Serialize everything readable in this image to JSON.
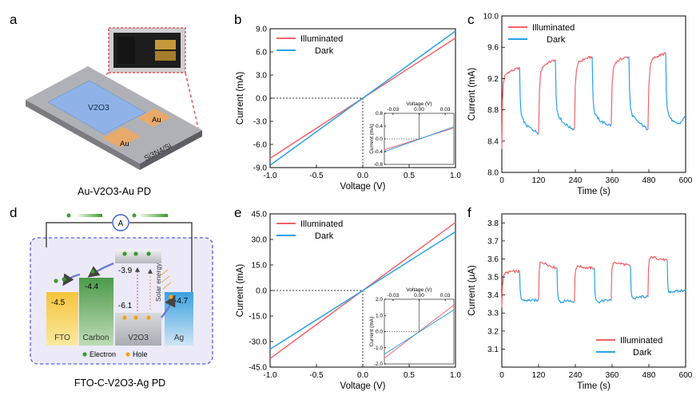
{
  "panel_labels": [
    "a",
    "b",
    "c",
    "d",
    "e",
    "f"
  ],
  "colors": {
    "illuminated": "#f0646a",
    "dark": "#2aa2e6",
    "gold": "#e8a96a",
    "v2o3": "#8fb3e8"
  },
  "device_a": {
    "caption": "Au-V2O3-Au PD",
    "labels": {
      "v2o3": "V2O3",
      "au_left": "Au",
      "au_right": "Au",
      "substrate": "Si3N4/Si"
    }
  },
  "diagram_d": {
    "caption": "FTO-C-V2O3-Ag PD",
    "meter": "A",
    "layers": [
      {
        "name": "FTO",
        "level": "-4.5"
      },
      {
        "name": "Carbon",
        "level": "-4.4"
      },
      {
        "name": "V2O3",
        "level": "-6.1",
        "cb_level": "-3.9"
      },
      {
        "name": "Ag",
        "level": "-4.7"
      }
    ],
    "solar_label": "Solar energy",
    "legend": {
      "electron": "Electron",
      "hole": "Hole"
    }
  },
  "chart_data": [
    {
      "panel": "b",
      "type": "line",
      "xlabel": "Voltage (V)",
      "ylabel": "Current (mA)",
      "xlim": [
        -1.0,
        1.0
      ],
      "ylim": [
        -9.0,
        9.0
      ],
      "xticks": [
        "-1.0",
        "-0.5",
        "0.0",
        "0.5",
        "1.0"
      ],
      "yticks": [
        "-9.0",
        "-6.0",
        "-3.0",
        "0.0",
        "3.0",
        "6.0",
        "9.0"
      ],
      "legend_position": "top-left",
      "series": [
        {
          "name": "Illuminated",
          "x": [
            -1.0,
            1.0
          ],
          "y": [
            -7.8,
            7.8
          ]
        },
        {
          "name": "Dark",
          "x": [
            -1.0,
            1.0
          ],
          "y": [
            -8.7,
            8.7
          ]
        }
      ],
      "inset": {
        "xlabel": "Voltage (V)",
        "ylabel": "Current (mA)",
        "xlim": [
          -0.04,
          0.04
        ],
        "ylim": [
          -0.8,
          0.8
        ],
        "xticks": [
          "-0.03",
          "0.00",
          "0.03"
        ],
        "yticks": [
          "0.8",
          "0.4",
          "0.0",
          "-0.4",
          "-0.8"
        ],
        "series": [
          {
            "name": "Illuminated",
            "x": [
              -0.04,
              0.04
            ],
            "y": [
              -0.34,
              0.34
            ]
          },
          {
            "name": "Dark",
            "x": [
              -0.04,
              0.04
            ],
            "y": [
              -0.4,
              0.38
            ]
          }
        ]
      }
    },
    {
      "panel": "c",
      "type": "line",
      "xlabel": "Time (s)",
      "ylabel": "Current (mA)",
      "xlim": [
        0,
        600
      ],
      "ylim": [
        8.0,
        10.0
      ],
      "xticks": [
        "0",
        "120",
        "240",
        "360",
        "480",
        "600"
      ],
      "yticks": [
        "8.0",
        "8.4",
        "8.8",
        "9.2",
        "9.6",
        "10.0"
      ],
      "legend_position": "top-left",
      "series": [
        {
          "name": "Illuminated",
          "segments": [
            {
              "x": [
                0,
                2,
                5,
                10,
                20,
                40,
                58
              ],
              "y": [
                8.3,
                8.9,
                9.15,
                9.23,
                9.28,
                9.31,
                9.34
              ]
            },
            {
              "x": [
                120,
                123,
                127,
                135,
                150,
                175
              ],
              "y": [
                8.5,
                9.05,
                9.28,
                9.36,
                9.4,
                9.44
              ]
            },
            {
              "x": [
                237,
                240,
                244,
                252,
                270,
                295
              ],
              "y": [
                8.55,
                9.1,
                9.33,
                9.41,
                9.45,
                9.48
              ]
            },
            {
              "x": [
                357,
                360,
                364,
                372,
                390,
                415
              ],
              "y": [
                8.6,
                9.1,
                9.33,
                9.41,
                9.45,
                9.48
              ]
            },
            {
              "x": [
                477,
                480,
                484,
                492,
                510,
                535
              ],
              "y": [
                8.55,
                9.1,
                9.35,
                9.45,
                9.49,
                9.52
              ]
            }
          ]
        },
        {
          "name": "Dark",
          "segments": [
            {
              "x": [
                58,
                60,
                63,
                68,
                80,
                100,
                120
              ],
              "y": [
                9.34,
                8.95,
                8.75,
                8.68,
                8.6,
                8.55,
                8.5
              ]
            },
            {
              "x": [
                175,
                177,
                180,
                186,
                200,
                220,
                237
              ],
              "y": [
                9.44,
                9.0,
                8.8,
                8.72,
                8.64,
                8.58,
                8.55
              ]
            },
            {
              "x": [
                295,
                297,
                300,
                306,
                320,
                340,
                357
              ],
              "y": [
                9.48,
                9.05,
                8.82,
                8.73,
                8.66,
                8.62,
                8.6
              ]
            },
            {
              "x": [
                415,
                417,
                420,
                426,
                440,
                460,
                477
              ],
              "y": [
                9.48,
                9.05,
                8.82,
                8.73,
                8.66,
                8.6,
                8.55
              ]
            },
            {
              "x": [
                535,
                537,
                540,
                546,
                560,
                580,
                600
              ],
              "y": [
                9.52,
                9.05,
                8.82,
                8.72,
                8.64,
                8.62,
                8.72
              ]
            }
          ]
        }
      ]
    },
    {
      "panel": "e",
      "type": "line",
      "xlabel": "Voltage (V)",
      "ylabel": "Current (mA)",
      "xlim": [
        -1.0,
        1.0
      ],
      "ylim": [
        -45.0,
        45.0
      ],
      "xticks": [
        "-1.0",
        "-0.5",
        "0.0",
        "0.5",
        "1.0"
      ],
      "yticks": [
        "-45.0",
        "-30.0",
        "-15.0",
        "0.0",
        "15.0",
        "30.0",
        "45.0"
      ],
      "legend_position": "top-left",
      "series": [
        {
          "name": "Illuminated",
          "x": [
            -1.0,
            1.0
          ],
          "y": [
            -40.0,
            40.0
          ]
        },
        {
          "name": "Dark",
          "x": [
            -1.0,
            1.0
          ],
          "y": [
            -34.5,
            34.5
          ]
        }
      ],
      "inset": {
        "xlabel": "Voltage (V)",
        "ylabel": "Current (mA)",
        "xlim": [
          -0.04,
          0.04
        ],
        "ylim": [
          -2.0,
          2.0
        ],
        "xticks": [
          "-0.03",
          "0.00",
          "0.03"
        ],
        "yticks": [
          "2.0",
          "1.0",
          "0.0",
          "-1.0",
          "-2.0"
        ],
        "series": [
          {
            "name": "Illuminated",
            "x": [
              -0.04,
              0.04
            ],
            "y": [
              -1.65,
              1.65
            ]
          },
          {
            "name": "Dark",
            "x": [
              -0.04,
              0.04
            ],
            "y": [
              -1.4,
              1.35
            ]
          }
        ]
      }
    },
    {
      "panel": "f",
      "type": "line",
      "xlabel": "Time (s)",
      "ylabel": "Current (μA)",
      "xlim": [
        0,
        600
      ],
      "ylim": [
        3.0,
        3.85
      ],
      "xticks": [
        "0",
        "120",
        "240",
        "360",
        "480",
        "600"
      ],
      "yticks": [
        "3.1",
        "3.2",
        "3.3",
        "3.4",
        "3.5",
        "3.6",
        "3.7",
        "3.8"
      ],
      "legend_position": "bottom-right",
      "series": [
        {
          "name": "Illuminated",
          "segments": [
            {
              "x": [
                0,
                2,
                5,
                10,
                30,
                58
              ],
              "y": [
                3.33,
                3.45,
                3.5,
                3.52,
                3.53,
                3.53
              ]
            },
            {
              "x": [
                120,
                122,
                125,
                135,
                160,
                180
              ],
              "y": [
                3.37,
                3.53,
                3.58,
                3.58,
                3.56,
                3.55
              ]
            },
            {
              "x": [
                237,
                239,
                242,
                250,
                280,
                302
              ],
              "y": [
                3.36,
                3.51,
                3.55,
                3.56,
                3.55,
                3.55
              ]
            },
            {
              "x": [
                357,
                359,
                362,
                370,
                400,
                420
              ],
              "y": [
                3.37,
                3.53,
                3.57,
                3.58,
                3.57,
                3.56
              ]
            },
            {
              "x": [
                477,
                479,
                482,
                490,
                520,
                540
              ],
              "y": [
                3.39,
                3.55,
                3.6,
                3.61,
                3.6,
                3.59
              ]
            }
          ]
        },
        {
          "name": "Dark",
          "segments": [
            {
              "x": [
                58,
                60,
                63,
                70,
                90,
                120
              ],
              "y": [
                3.53,
                3.42,
                3.38,
                3.37,
                3.37,
                3.37
              ]
            },
            {
              "x": [
                180,
                182,
                185,
                192,
                215,
                237
              ],
              "y": [
                3.55,
                3.42,
                3.38,
                3.36,
                3.37,
                3.36
              ]
            },
            {
              "x": [
                302,
                304,
                307,
                314,
                335,
                357
              ],
              "y": [
                3.55,
                3.42,
                3.38,
                3.36,
                3.37,
                3.37
              ]
            },
            {
              "x": [
                420,
                422,
                425,
                432,
                455,
                477
              ],
              "y": [
                3.56,
                3.43,
                3.39,
                3.38,
                3.39,
                3.39
              ]
            },
            {
              "x": [
                540,
                542,
                545,
                552,
                575,
                600
              ],
              "y": [
                3.59,
                3.45,
                3.41,
                3.42,
                3.42,
                3.43
              ]
            }
          ]
        }
      ]
    }
  ]
}
